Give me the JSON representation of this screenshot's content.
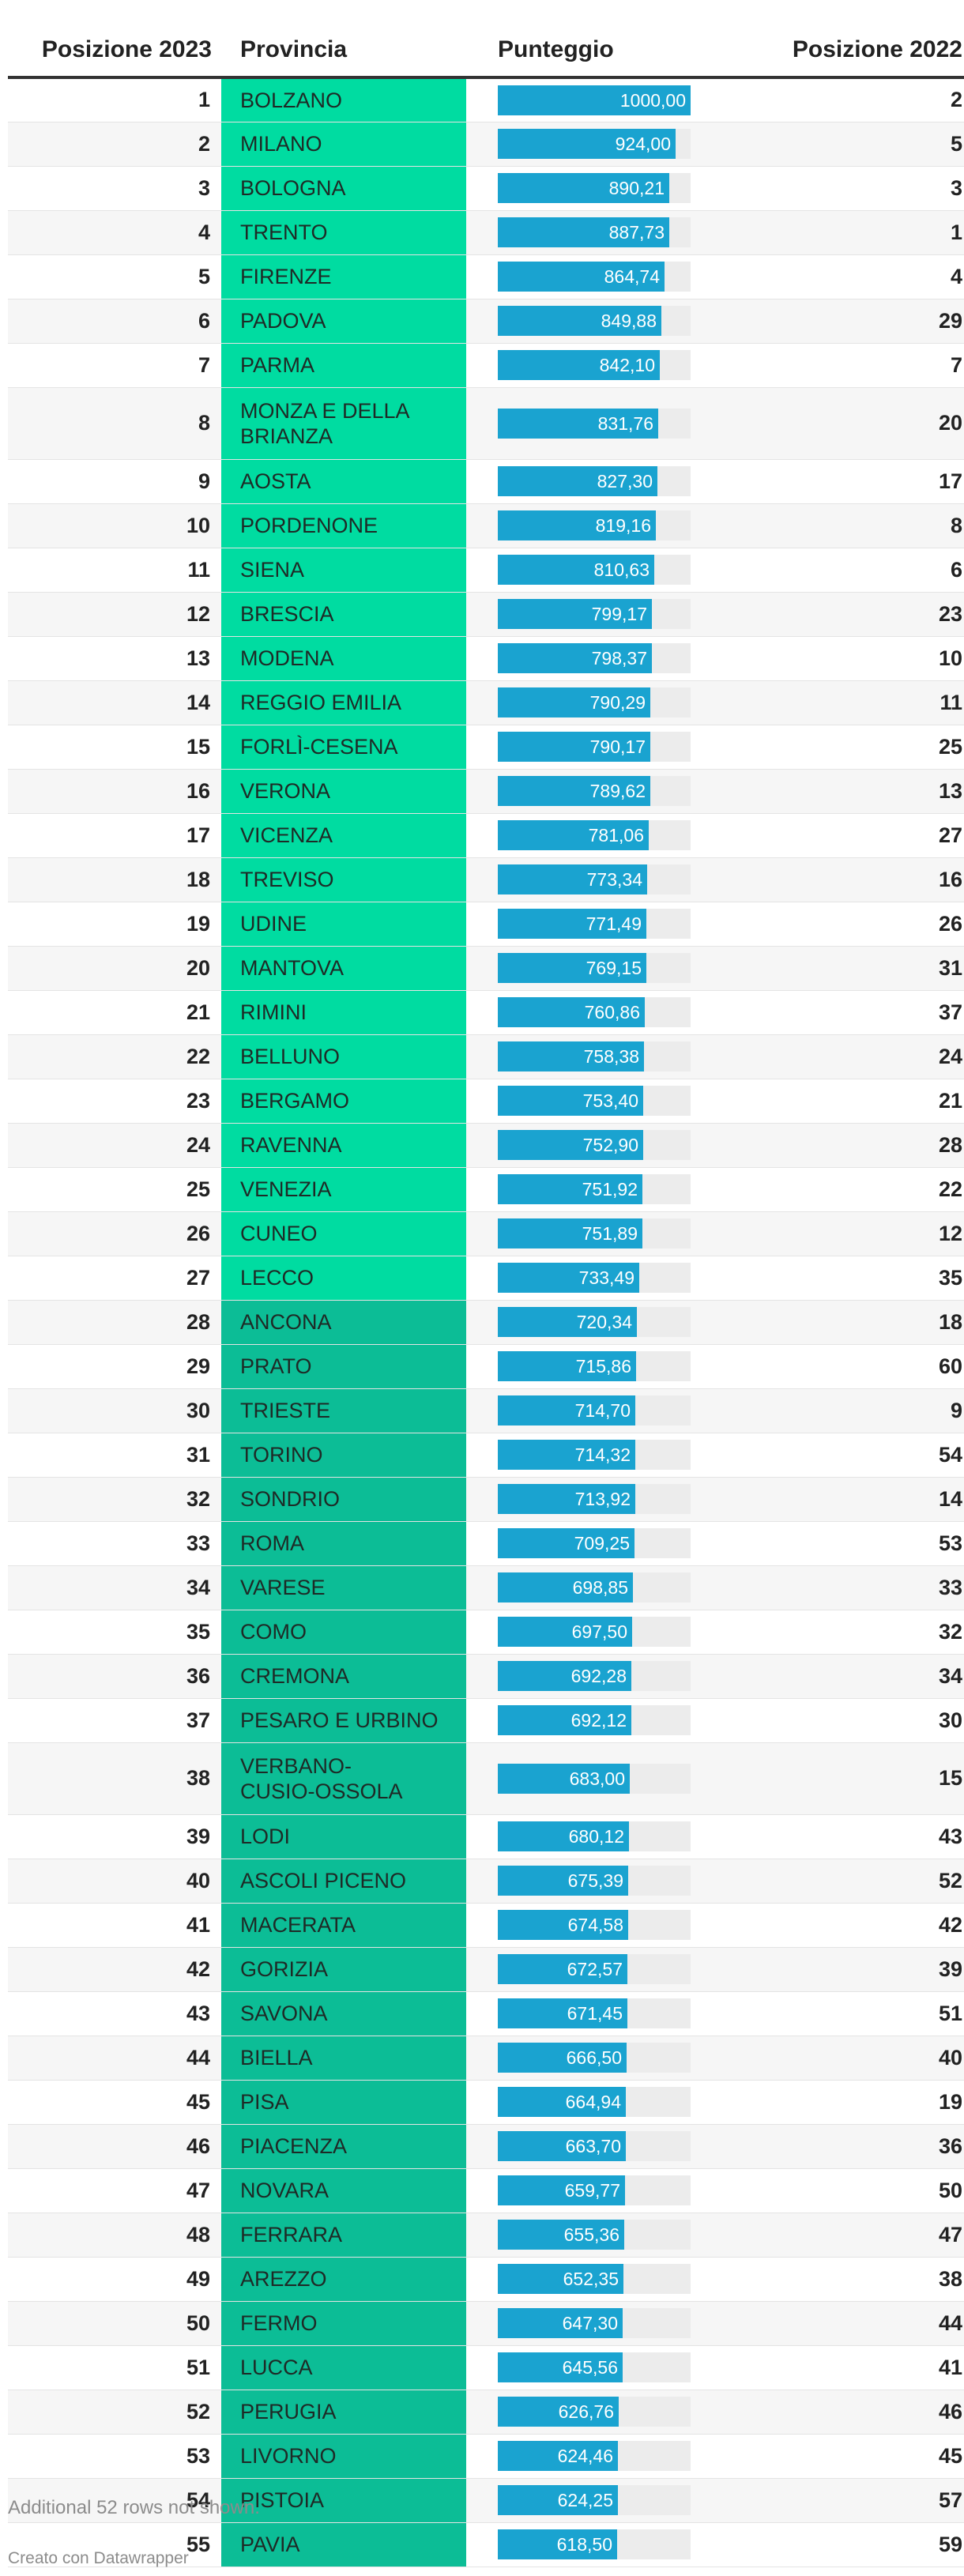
{
  "table": {
    "headers": {
      "position_2023": "Posizione 2023",
      "province": "Provincia",
      "score": "Punteggio",
      "position_2022": "Posizione 2022"
    },
    "colors": {
      "province_top_group": "#00dca1",
      "province_bottom_group": "#0cbd96",
      "score_bar": "#1aa3d0",
      "score_track": "#ececec"
    }
  },
  "chart_data": {
    "type": "table",
    "score_max": 1000,
    "columns": [
      "Posizione 2023",
      "Provincia",
      "Punteggio",
      "Posizione 2022"
    ],
    "rows": [
      {
        "pos2023": 1,
        "province": "BOLZANO",
        "score": 1000.0,
        "score_label": "1000,00",
        "pos2022": 2
      },
      {
        "pos2023": 2,
        "province": "MILANO",
        "score": 924.0,
        "score_label": "924,00",
        "pos2022": 5
      },
      {
        "pos2023": 3,
        "province": "BOLOGNA",
        "score": 890.21,
        "score_label": "890,21",
        "pos2022": 3
      },
      {
        "pos2023": 4,
        "province": "TRENTO",
        "score": 887.73,
        "score_label": "887,73",
        "pos2022": 1
      },
      {
        "pos2023": 5,
        "province": "FIRENZE",
        "score": 864.74,
        "score_label": "864,74",
        "pos2022": 4
      },
      {
        "pos2023": 6,
        "province": "PADOVA",
        "score": 849.88,
        "score_label": "849,88",
        "pos2022": 29
      },
      {
        "pos2023": 7,
        "province": "PARMA",
        "score": 842.1,
        "score_label": "842,10",
        "pos2022": 7
      },
      {
        "pos2023": 8,
        "province": "MONZA E DELLA BRIANZA",
        "score": 831.76,
        "score_label": "831,76",
        "pos2022": 20
      },
      {
        "pos2023": 9,
        "province": "AOSTA",
        "score": 827.3,
        "score_label": "827,30",
        "pos2022": 17
      },
      {
        "pos2023": 10,
        "province": "PORDENONE",
        "score": 819.16,
        "score_label": "819,16",
        "pos2022": 8
      },
      {
        "pos2023": 11,
        "province": "SIENA",
        "score": 810.63,
        "score_label": "810,63",
        "pos2022": 6
      },
      {
        "pos2023": 12,
        "province": "BRESCIA",
        "score": 799.17,
        "score_label": "799,17",
        "pos2022": 23
      },
      {
        "pos2023": 13,
        "province": "MODENA",
        "score": 798.37,
        "score_label": "798,37",
        "pos2022": 10
      },
      {
        "pos2023": 14,
        "province": "REGGIO EMILIA",
        "score": 790.29,
        "score_label": "790,29",
        "pos2022": 11
      },
      {
        "pos2023": 15,
        "province": "FORLÌ-CESENA",
        "score": 790.17,
        "score_label": "790,17",
        "pos2022": 25
      },
      {
        "pos2023": 16,
        "province": "VERONA",
        "score": 789.62,
        "score_label": "789,62",
        "pos2022": 13
      },
      {
        "pos2023": 17,
        "province": "VICENZA",
        "score": 781.06,
        "score_label": "781,06",
        "pos2022": 27
      },
      {
        "pos2023": 18,
        "province": "TREVISO",
        "score": 773.34,
        "score_label": "773,34",
        "pos2022": 16
      },
      {
        "pos2023": 19,
        "province": "UDINE",
        "score": 771.49,
        "score_label": "771,49",
        "pos2022": 26
      },
      {
        "pos2023": 20,
        "province": "MANTOVA",
        "score": 769.15,
        "score_label": "769,15",
        "pos2022": 31
      },
      {
        "pos2023": 21,
        "province": "RIMINI",
        "score": 760.86,
        "score_label": "760,86",
        "pos2022": 37
      },
      {
        "pos2023": 22,
        "province": "BELLUNO",
        "score": 758.38,
        "score_label": "758,38",
        "pos2022": 24
      },
      {
        "pos2023": 23,
        "province": "BERGAMO",
        "score": 753.4,
        "score_label": "753,40",
        "pos2022": 21
      },
      {
        "pos2023": 24,
        "province": "RAVENNA",
        "score": 752.9,
        "score_label": "752,90",
        "pos2022": 28
      },
      {
        "pos2023": 25,
        "province": "VENEZIA",
        "score": 751.92,
        "score_label": "751,92",
        "pos2022": 22
      },
      {
        "pos2023": 26,
        "province": "CUNEO",
        "score": 751.89,
        "score_label": "751,89",
        "pos2022": 12
      },
      {
        "pos2023": 27,
        "province": "LECCO",
        "score": 733.49,
        "score_label": "733,49",
        "pos2022": 35
      },
      {
        "pos2023": 28,
        "province": "ANCONA",
        "score": 720.34,
        "score_label": "720,34",
        "pos2022": 18
      },
      {
        "pos2023": 29,
        "province": "PRATO",
        "score": 715.86,
        "score_label": "715,86",
        "pos2022": 60
      },
      {
        "pos2023": 30,
        "province": "TRIESTE",
        "score": 714.7,
        "score_label": "714,70",
        "pos2022": 9
      },
      {
        "pos2023": 31,
        "province": "TORINO",
        "score": 714.32,
        "score_label": "714,32",
        "pos2022": 54
      },
      {
        "pos2023": 32,
        "province": "SONDRIO",
        "score": 713.92,
        "score_label": "713,92",
        "pos2022": 14
      },
      {
        "pos2023": 33,
        "province": "ROMA",
        "score": 709.25,
        "score_label": "709,25",
        "pos2022": 53
      },
      {
        "pos2023": 34,
        "province": "VARESE",
        "score": 698.85,
        "score_label": "698,85",
        "pos2022": 33
      },
      {
        "pos2023": 35,
        "province": "COMO",
        "score": 697.5,
        "score_label": "697,50",
        "pos2022": 32
      },
      {
        "pos2023": 36,
        "province": "CREMONA",
        "score": 692.28,
        "score_label": "692,28",
        "pos2022": 34
      },
      {
        "pos2023": 37,
        "province": "PESARO E URBINO",
        "score": 692.12,
        "score_label": "692,12",
        "pos2022": 30
      },
      {
        "pos2023": 38,
        "province": "VERBANO-CUSIO-OSSOLA",
        "score": 683.0,
        "score_label": "683,00",
        "pos2022": 15
      },
      {
        "pos2023": 39,
        "province": "LODI",
        "score": 680.12,
        "score_label": "680,12",
        "pos2022": 43
      },
      {
        "pos2023": 40,
        "province": "ASCOLI PICENO",
        "score": 675.39,
        "score_label": "675,39",
        "pos2022": 52
      },
      {
        "pos2023": 41,
        "province": "MACERATA",
        "score": 674.58,
        "score_label": "674,58",
        "pos2022": 42
      },
      {
        "pos2023": 42,
        "province": "GORIZIA",
        "score": 672.57,
        "score_label": "672,57",
        "pos2022": 39
      },
      {
        "pos2023": 43,
        "province": "SAVONA",
        "score": 671.45,
        "score_label": "671,45",
        "pos2022": 51
      },
      {
        "pos2023": 44,
        "province": "BIELLA",
        "score": 666.5,
        "score_label": "666,50",
        "pos2022": 40
      },
      {
        "pos2023": 45,
        "province": "PISA",
        "score": 664.94,
        "score_label": "664,94",
        "pos2022": 19
      },
      {
        "pos2023": 46,
        "province": "PIACENZA",
        "score": 663.7,
        "score_label": "663,70",
        "pos2022": 36
      },
      {
        "pos2023": 47,
        "province": "NOVARA",
        "score": 659.77,
        "score_label": "659,77",
        "pos2022": 50
      },
      {
        "pos2023": 48,
        "province": "FERRARA",
        "score": 655.36,
        "score_label": "655,36",
        "pos2022": 47
      },
      {
        "pos2023": 49,
        "province": "AREZZO",
        "score": 652.35,
        "score_label": "652,35",
        "pos2022": 38
      },
      {
        "pos2023": 50,
        "province": "FERMO",
        "score": 647.3,
        "score_label": "647,30",
        "pos2022": 44
      },
      {
        "pos2023": 51,
        "province": "LUCCA",
        "score": 645.56,
        "score_label": "645,56",
        "pos2022": 41
      },
      {
        "pos2023": 52,
        "province": "PERUGIA",
        "score": 626.76,
        "score_label": "626,76",
        "pos2022": 46
      },
      {
        "pos2023": 53,
        "province": "LIVORNO",
        "score": 624.46,
        "score_label": "624,46",
        "pos2022": 45
      },
      {
        "pos2023": 54,
        "province": "PISTOIA",
        "score": 624.25,
        "score_label": "624,25",
        "pos2022": 57
      },
      {
        "pos2023": 55,
        "province": "PAVIA",
        "score": 618.5,
        "score_label": "618,50",
        "pos2022": 59
      }
    ]
  },
  "footer": {
    "note": "Additional 52 rows not shown.",
    "credit": "Creato con Datawrapper"
  }
}
